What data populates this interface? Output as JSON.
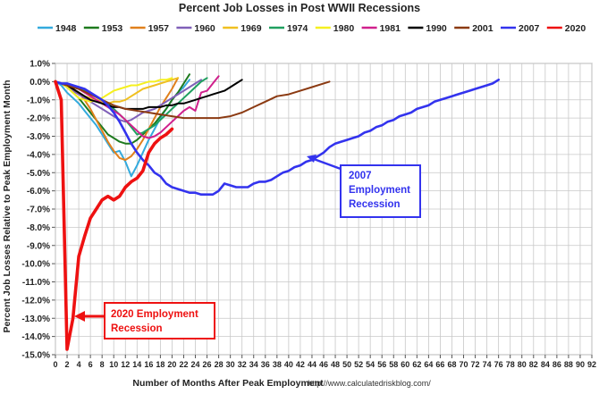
{
  "chart_data": {
    "type": "line",
    "title": "Percent Job Losses in Post WWII Recessions",
    "xlabel": "Number of Months After Peak Employment",
    "ylabel": "Percent Job Losses Relative to Peak Employment Month",
    "source_note": "http://www.calculatedriskblog.com/",
    "xlim": [
      0,
      92
    ],
    "ylim": [
      -15,
      1
    ],
    "x_ticks": [
      0,
      2,
      4,
      6,
      8,
      10,
      12,
      14,
      16,
      18,
      20,
      22,
      24,
      26,
      28,
      30,
      32,
      34,
      36,
      38,
      40,
      42,
      44,
      46,
      48,
      50,
      52,
      54,
      56,
      58,
      60,
      62,
      64,
      66,
      68,
      70,
      72,
      74,
      76,
      78,
      80,
      82,
      84,
      86,
      88,
      90,
      92
    ],
    "y_ticks": [
      1,
      0,
      -1,
      -2,
      -3,
      -4,
      -5,
      -6,
      -7,
      -8,
      -9,
      -10,
      -11,
      -12,
      -13,
      -14,
      -15
    ],
    "y_tick_labels": [
      "1.0%",
      "0.0%",
      "-1.0%",
      "-2.0%",
      "-3.0%",
      "-4.0%",
      "-5.0%",
      "-6.0%",
      "-7.0%",
      "-8.0%",
      "-9.0%",
      "-10.0%",
      "-11.0%",
      "-12.0%",
      "-13.0%",
      "-14.0%",
      "-15.0%"
    ],
    "grid": true,
    "legend_position": "top",
    "series": [
      {
        "name": "1948",
        "color": "#33aadd",
        "width": 2,
        "x": [
          0,
          1,
          2,
          3,
          4,
          5,
          6,
          7,
          8,
          9,
          10,
          11,
          12,
          13,
          14,
          15,
          16,
          17,
          18,
          19,
          20,
          21,
          22,
          23
        ],
        "y": [
          0,
          -0.2,
          -0.6,
          -0.9,
          -1.2,
          -1.6,
          -2.0,
          -2.4,
          -2.9,
          -3.4,
          -3.9,
          -3.8,
          -4.4,
          -5.2,
          -4.6,
          -3.9,
          -3.2,
          -2.6,
          -2.0,
          -1.5,
          -1.0,
          -0.6,
          -0.3,
          0.1
        ]
      },
      {
        "name": "1953",
        "color": "#1e7a1e",
        "width": 2,
        "x": [
          0,
          1,
          2,
          3,
          4,
          5,
          6,
          7,
          8,
          9,
          10,
          11,
          12,
          13,
          14,
          15,
          16,
          17,
          18,
          19,
          20,
          21,
          22,
          23
        ],
        "y": [
          0,
          -0.1,
          -0.3,
          -0.6,
          -0.9,
          -1.3,
          -1.7,
          -2.1,
          -2.5,
          -2.9,
          -3.1,
          -3.3,
          -3.4,
          -3.4,
          -3.2,
          -2.9,
          -2.6,
          -2.3,
          -1.9,
          -1.5,
          -1.0,
          -0.6,
          -0.1,
          0.4
        ]
      },
      {
        "name": "1957",
        "color": "#e0801c",
        "width": 2,
        "x": [
          0,
          1,
          2,
          3,
          4,
          5,
          6,
          7,
          8,
          9,
          10,
          11,
          12,
          13,
          14,
          15,
          16,
          17,
          18,
          19,
          20,
          21
        ],
        "y": [
          0,
          -0.1,
          -0.2,
          -0.4,
          -0.6,
          -1.0,
          -1.5,
          -2.1,
          -2.7,
          -3.3,
          -3.8,
          -4.2,
          -4.3,
          -4.1,
          -3.7,
          -3.2,
          -2.6,
          -2.0,
          -1.4,
          -0.9,
          -0.4,
          0.2
        ]
      },
      {
        "name": "1960",
        "color": "#8060b8",
        "width": 2,
        "x": [
          0,
          1,
          2,
          3,
          4,
          5,
          6,
          7,
          8,
          9,
          10,
          11,
          12,
          13,
          14,
          15,
          16,
          17,
          18,
          19,
          20,
          21,
          22,
          23,
          24,
          25
        ],
        "y": [
          0,
          -0.1,
          -0.3,
          -0.5,
          -0.7,
          -0.9,
          -1.1,
          -1.3,
          -1.5,
          -1.7,
          -1.9,
          -2.1,
          -2.2,
          -2.1,
          -1.9,
          -1.7,
          -1.6,
          -1.5,
          -1.3,
          -1.1,
          -0.9,
          -0.7,
          -0.5,
          -0.3,
          -0.1,
          0.1
        ]
      },
      {
        "name": "1969",
        "color": "#f0c020",
        "width": 2,
        "x": [
          0,
          1,
          2,
          3,
          4,
          5,
          6,
          7,
          8,
          9,
          10,
          11,
          12,
          13,
          14,
          15,
          16,
          17,
          18,
          19,
          20,
          21
        ],
        "y": [
          0,
          -0.1,
          -0.2,
          -0.4,
          -0.6,
          -0.8,
          -0.9,
          -1.0,
          -1.1,
          -1.2,
          -1.1,
          -1.1,
          -1.0,
          -0.8,
          -0.6,
          -0.4,
          -0.3,
          -0.2,
          -0.1,
          0.0,
          0.1,
          0.2
        ]
      },
      {
        "name": "1974",
        "color": "#20a060",
        "width": 2,
        "x": [
          0,
          1,
          2,
          3,
          4,
          5,
          6,
          7,
          8,
          9,
          10,
          11,
          12,
          13,
          14,
          15,
          16,
          17,
          18,
          19,
          20,
          21,
          22,
          23,
          24,
          25,
          26
        ],
        "y": [
          0,
          -0.1,
          -0.2,
          -0.3,
          -0.4,
          -0.5,
          -0.6,
          -0.8,
          -1.0,
          -1.2,
          -1.5,
          -1.8,
          -2.1,
          -2.5,
          -2.9,
          -2.8,
          -2.6,
          -2.4,
          -2.1,
          -1.8,
          -1.5,
          -1.2,
          -0.9,
          -0.6,
          -0.3,
          0.0,
          0.2
        ]
      },
      {
        "name": "1980",
        "color": "#f5f020",
        "width": 2,
        "x": [
          0,
          1,
          2,
          3,
          4,
          5,
          6,
          7,
          8,
          9,
          10,
          11,
          12,
          13,
          14,
          15,
          16,
          17,
          18,
          19,
          20
        ],
        "y": [
          0,
          -0.1,
          -0.3,
          -0.6,
          -0.9,
          -1.0,
          -1.1,
          -1.0,
          -0.9,
          -0.7,
          -0.5,
          -0.4,
          -0.3,
          -0.2,
          -0.2,
          -0.1,
          0.0,
          0.0,
          0.1,
          0.1,
          0.2
        ]
      },
      {
        "name": "1981",
        "color": "#d0208c",
        "width": 2,
        "x": [
          0,
          1,
          2,
          3,
          4,
          5,
          6,
          7,
          8,
          9,
          10,
          11,
          12,
          13,
          14,
          15,
          16,
          17,
          18,
          19,
          20,
          21,
          22,
          23,
          24,
          25,
          26,
          27,
          28
        ],
        "y": [
          0,
          -0.1,
          -0.2,
          -0.3,
          -0.4,
          -0.6,
          -0.8,
          -1.0,
          -1.2,
          -1.4,
          -1.6,
          -1.8,
          -2.1,
          -2.4,
          -2.7,
          -3.0,
          -3.1,
          -3.0,
          -2.8,
          -2.5,
          -2.2,
          -1.9,
          -1.6,
          -1.4,
          -1.6,
          -0.6,
          -0.5,
          -0.1,
          0.3
        ]
      },
      {
        "name": "1990",
        "color": "#000000",
        "width": 2,
        "x": [
          0,
          1,
          2,
          3,
          4,
          5,
          6,
          7,
          8,
          9,
          10,
          11,
          12,
          13,
          14,
          15,
          16,
          17,
          18,
          19,
          20,
          21,
          22,
          23,
          24,
          25,
          26,
          27,
          28,
          29,
          30,
          31,
          32
        ],
        "y": [
          0,
          -0.1,
          -0.2,
          -0.4,
          -0.6,
          -0.8,
          -1.0,
          -1.1,
          -1.2,
          -1.3,
          -1.4,
          -1.4,
          -1.5,
          -1.5,
          -1.5,
          -1.5,
          -1.4,
          -1.4,
          -1.4,
          -1.3,
          -1.3,
          -1.2,
          -1.2,
          -1.1,
          -1.0,
          -0.9,
          -0.8,
          -0.7,
          -0.6,
          -0.5,
          -0.3,
          -0.1,
          0.1
        ]
      },
      {
        "name": "2001",
        "color": "#8b3a12",
        "width": 2,
        "x": [
          0,
          2,
          4,
          6,
          8,
          10,
          12,
          14,
          16,
          18,
          20,
          22,
          24,
          26,
          28,
          30,
          32,
          34,
          36,
          38,
          40,
          42,
          44,
          46,
          47
        ],
        "y": [
          0,
          -0.2,
          -0.4,
          -0.7,
          -1.0,
          -1.3,
          -1.5,
          -1.6,
          -1.7,
          -1.8,
          -1.9,
          -2.0,
          -2.0,
          -2.0,
          -2.0,
          -1.9,
          -1.7,
          -1.4,
          -1.1,
          -0.8,
          -0.7,
          -0.5,
          -0.3,
          -0.1,
          0.0
        ]
      },
      {
        "name": "2007",
        "color": "#3333ee",
        "width": 2.6,
        "x": [
          0,
          1,
          2,
          3,
          4,
          5,
          6,
          7,
          8,
          9,
          10,
          11,
          12,
          13,
          14,
          15,
          16,
          17,
          18,
          19,
          20,
          21,
          22,
          23,
          24,
          25,
          26,
          27,
          28,
          29,
          30,
          31,
          32,
          33,
          34,
          35,
          36,
          37,
          38,
          39,
          40,
          41,
          42,
          43,
          44,
          45,
          46,
          47,
          48,
          49,
          50,
          51,
          52,
          53,
          54,
          55,
          56,
          57,
          58,
          59,
          60,
          61,
          62,
          63,
          64,
          65,
          66,
          67,
          68,
          69,
          70,
          71,
          72,
          73,
          74,
          75,
          76
        ],
        "y": [
          0,
          -0.1,
          -0.1,
          -0.2,
          -0.3,
          -0.4,
          -0.6,
          -0.8,
          -1.0,
          -1.3,
          -1.7,
          -2.2,
          -2.8,
          -3.4,
          -3.9,
          -4.3,
          -4.6,
          -5.0,
          -5.2,
          -5.6,
          -5.8,
          -5.9,
          -6.0,
          -6.1,
          -6.1,
          -6.2,
          -6.2,
          -6.2,
          -6.0,
          -5.6,
          -5.7,
          -5.8,
          -5.8,
          -5.8,
          -5.6,
          -5.5,
          -5.5,
          -5.4,
          -5.2,
          -5.0,
          -4.9,
          -4.7,
          -4.6,
          -4.4,
          -4.3,
          -4.1,
          -3.9,
          -3.6,
          -3.4,
          -3.3,
          -3.2,
          -3.1,
          -3.0,
          -2.8,
          -2.7,
          -2.5,
          -2.4,
          -2.2,
          -2.1,
          -1.9,
          -1.8,
          -1.7,
          -1.5,
          -1.4,
          -1.3,
          -1.1,
          -1.0,
          -0.9,
          -0.8,
          -0.7,
          -0.6,
          -0.5,
          -0.4,
          -0.3,
          -0.2,
          -0.1,
          0.1
        ]
      },
      {
        "name": "2020",
        "color": "#ee1111",
        "width": 3.6,
        "x": [
          0,
          1,
          2,
          3,
          4,
          5,
          6,
          7,
          8,
          9,
          10,
          11,
          12,
          13,
          14,
          15,
          16,
          17,
          18,
          19,
          20
        ],
        "y": [
          0,
          -1.0,
          -14.7,
          -13.0,
          -9.6,
          -8.5,
          -7.5,
          -7.0,
          -6.5,
          -6.3,
          -6.5,
          -6.3,
          -5.8,
          -5.5,
          -5.3,
          -4.9,
          -3.9,
          -3.4,
          -3.1,
          -2.9,
          -2.6
        ]
      }
    ],
    "annotations": [
      {
        "id": "ann-2007",
        "lines": [
          "2007",
          "Employment",
          "Recession"
        ],
        "color": "#3333ee"
      },
      {
        "id": "ann-2020",
        "lines": [
          "2020 Employment",
          "Recession"
        ],
        "color": "#ee1111"
      }
    ]
  }
}
